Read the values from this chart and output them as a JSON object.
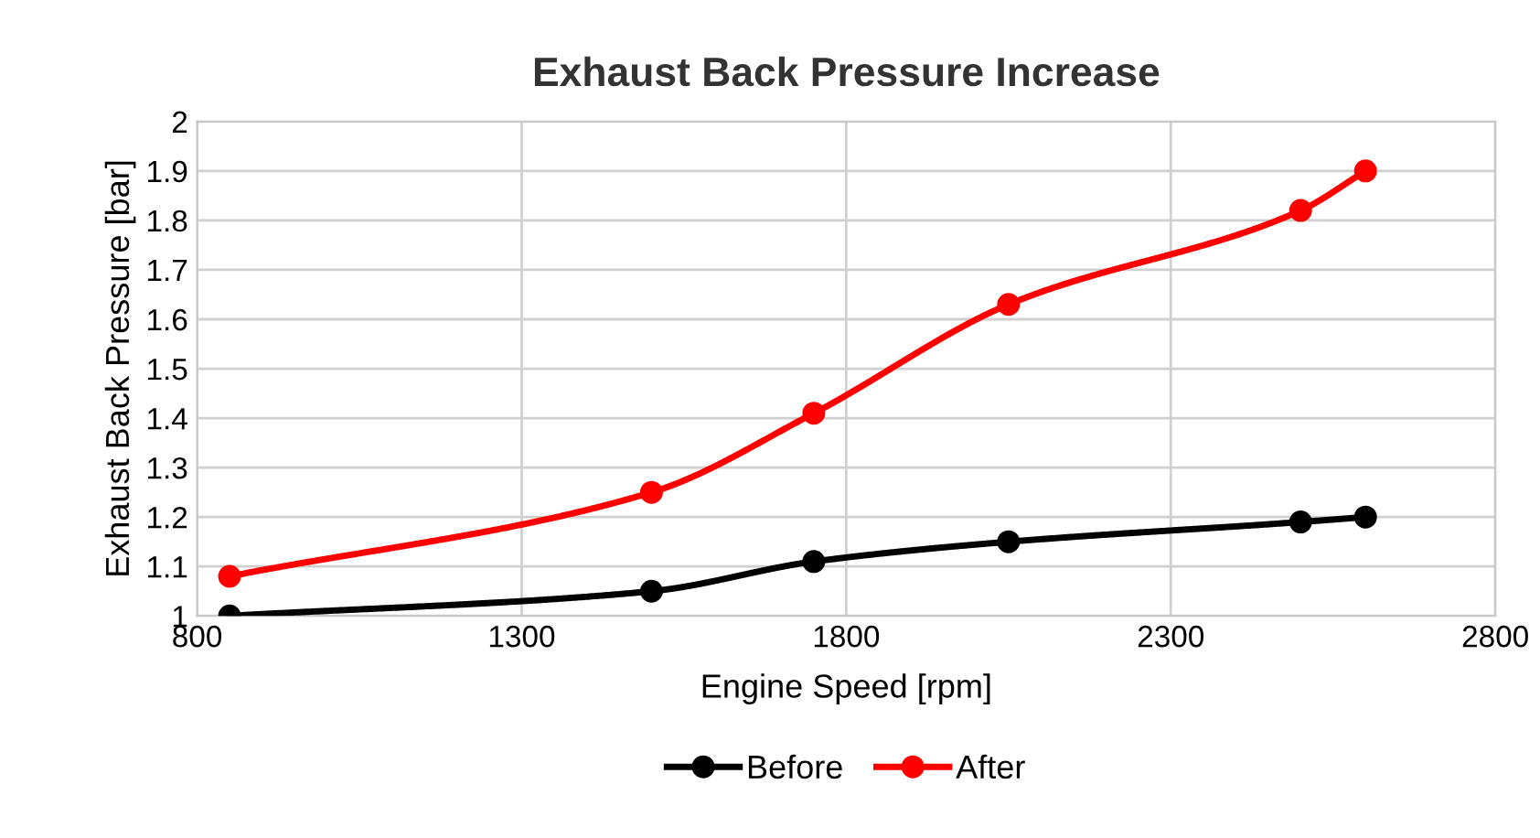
{
  "chart_data": {
    "type": "line",
    "title": "Exhaust Back Pressure Increase",
    "xlabel": "Engine Speed [rpm]",
    "ylabel": "Exhaust Back Pressure [bar]",
    "x": [
      850,
      1500,
      1750,
      2050,
      2500,
      2600
    ],
    "series": [
      {
        "name": "Before",
        "color": "#000000",
        "values": [
          1.0,
          1.05,
          1.11,
          1.15,
          1.19,
          1.2
        ]
      },
      {
        "name": "After",
        "color": "#ff0000",
        "values": [
          1.08,
          1.25,
          1.41,
          1.63,
          1.82,
          1.9
        ]
      }
    ],
    "xlim": [
      800,
      2800
    ],
    "xticks": [
      800,
      1300,
      1800,
      2300,
      2800
    ],
    "ylim": [
      1,
      2
    ],
    "yticks": [
      1,
      1.1,
      1.2,
      1.3,
      1.4,
      1.5,
      1.6,
      1.7,
      1.8,
      1.9,
      2
    ],
    "grid": true,
    "legend": "bottom",
    "marker": "circle",
    "line_style": "solid"
  }
}
